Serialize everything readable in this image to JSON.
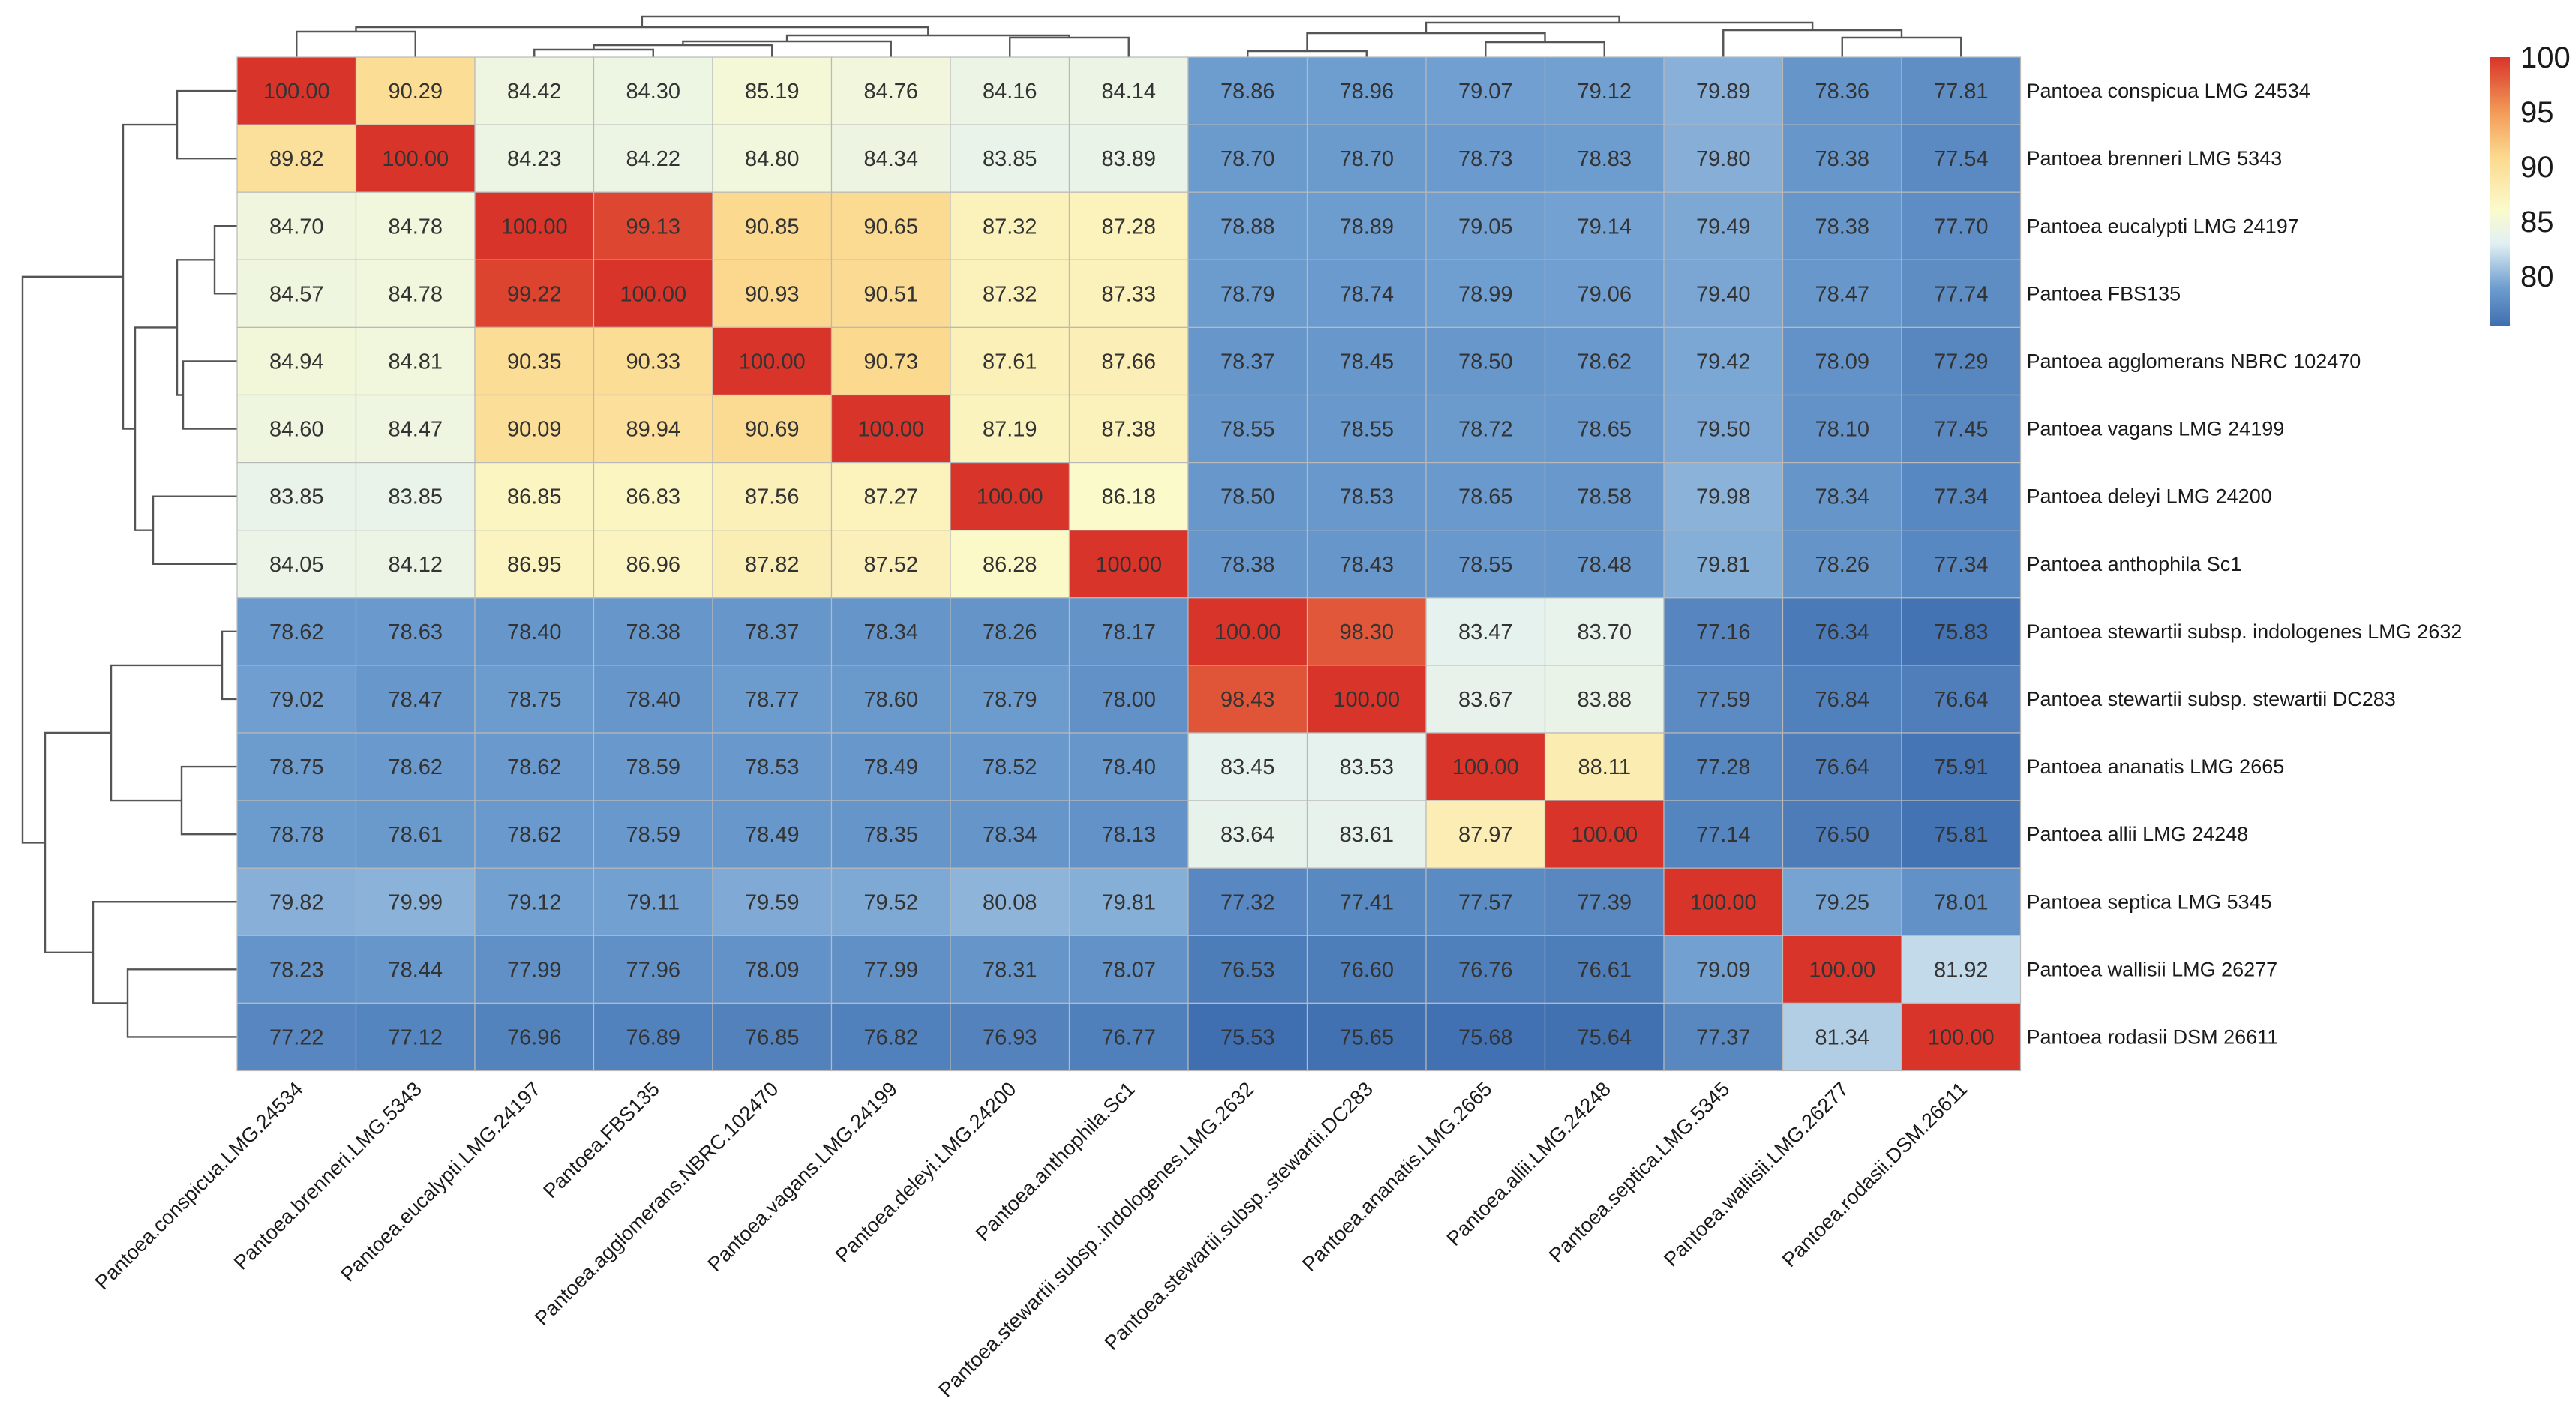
{
  "chart_data": {
    "type": "heatmap",
    "title": "",
    "row_labels": [
      "Pantoea conspicua LMG 24534",
      "Pantoea brenneri LMG 5343",
      "Pantoea eucalypti LMG 24197",
      "Pantoea FBS135",
      "Pantoea agglomerans NBRC 102470",
      "Pantoea vagans LMG 24199",
      "Pantoea deleyi LMG 24200",
      "Pantoea anthophila Sc1",
      "Pantoea stewartii subsp. indologenes LMG 2632",
      "Pantoea stewartii subsp. stewartii DC283",
      "Pantoea ananatis LMG 2665",
      "Pantoea allii LMG 24248",
      "Pantoea septica LMG 5345",
      "Pantoea wallisii LMG 26277",
      "Pantoea rodasii DSM 26611"
    ],
    "col_labels": [
      "Pantoea.conspicua.LMG.24534",
      "Pantoea.brenneri.LMG.5343",
      "Pantoea.eucalypti.LMG.24197",
      "Pantoea.FBS135",
      "Pantoea.agglomerans.NBRC.102470",
      "Pantoea.vagans.LMG.24199",
      "Pantoea.deleyi.LMG.24200",
      "Pantoea.anthophila.Sc1",
      "Pantoea.stewartii.subsp..indologenes.LMG.2632",
      "Pantoea.stewartii.subsp..stewartii.DC283",
      "Pantoea.ananatis.LMG.2665",
      "Pantoea.allii.LMG.24248",
      "Pantoea.septica.LMG.5345",
      "Pantoea.wallisii.LMG.26277",
      "Pantoea.rodasii.DSM.26611"
    ],
    "values": [
      [
        "100.00",
        "90.29",
        "84.42",
        "84.30",
        "85.19",
        "84.76",
        "84.16",
        "84.14",
        "78.86",
        "78.96",
        "79.07",
        "79.12",
        "79.89",
        "78.36",
        "77.81"
      ],
      [
        "89.82",
        "100.00",
        "84.23",
        "84.22",
        "84.80",
        "84.34",
        "83.85",
        "83.89",
        "78.70",
        "78.70",
        "78.73",
        "78.83",
        "79.80",
        "78.38",
        "77.54"
      ],
      [
        "84.70",
        "84.78",
        "100.00",
        "99.13",
        "90.85",
        "90.65",
        "87.32",
        "87.28",
        "78.88",
        "78.89",
        "79.05",
        "79.14",
        "79.49",
        "78.38",
        "77.70"
      ],
      [
        "84.57",
        "84.78",
        "99.22",
        "100.00",
        "90.93",
        "90.51",
        "87.32",
        "87.33",
        "78.79",
        "78.74",
        "78.99",
        "79.06",
        "79.40",
        "78.47",
        "77.74"
      ],
      [
        "84.94",
        "84.81",
        "90.35",
        "90.33",
        "100.00",
        "90.73",
        "87.61",
        "87.66",
        "78.37",
        "78.45",
        "78.50",
        "78.62",
        "79.42",
        "78.09",
        "77.29"
      ],
      [
        "84.60",
        "84.47",
        "90.09",
        "89.94",
        "90.69",
        "100.00",
        "87.19",
        "87.38",
        "78.55",
        "78.55",
        "78.72",
        "78.65",
        "79.50",
        "78.10",
        "77.45"
      ],
      [
        "83.85",
        "83.85",
        "86.85",
        "86.83",
        "87.56",
        "87.27",
        "100.00",
        "86.18",
        "78.50",
        "78.53",
        "78.65",
        "78.58",
        "79.98",
        "78.34",
        "77.34"
      ],
      [
        "84.05",
        "84.12",
        "86.95",
        "86.96",
        "87.82",
        "87.52",
        "86.28",
        "100.00",
        "78.38",
        "78.43",
        "78.55",
        "78.48",
        "79.81",
        "78.26",
        "77.34"
      ],
      [
        "78.62",
        "78.63",
        "78.40",
        "78.38",
        "78.37",
        "78.34",
        "78.26",
        "78.17",
        "100.00",
        "98.30",
        "83.47",
        "83.70",
        "77.16",
        "76.34",
        "75.83"
      ],
      [
        "79.02",
        "78.47",
        "78.75",
        "78.40",
        "78.77",
        "78.60",
        "78.79",
        "78.00",
        "98.43",
        "100.00",
        "83.67",
        "83.88",
        "77.59",
        "76.84",
        "76.64"
      ],
      [
        "78.75",
        "78.62",
        "78.62",
        "78.59",
        "78.53",
        "78.49",
        "78.52",
        "78.40",
        "83.45",
        "83.53",
        "100.00",
        "88.11",
        "77.28",
        "76.64",
        "75.91"
      ],
      [
        "78.78",
        "78.61",
        "78.62",
        "78.59",
        "78.49",
        "78.35",
        "78.34",
        "78.13",
        "83.64",
        "83.61",
        "87.97",
        "100.00",
        "77.14",
        "76.50",
        "75.81"
      ],
      [
        "79.82",
        "79.99",
        "79.12",
        "79.11",
        "79.59",
        "79.52",
        "80.08",
        "79.81",
        "77.32",
        "77.41",
        "77.57",
        "77.39",
        "100.00",
        "79.25",
        "78.01"
      ],
      [
        "78.23",
        "78.44",
        "77.99",
        "77.96",
        "78.09",
        "77.99",
        "78.31",
        "78.07",
        "76.53",
        "76.60",
        "76.76",
        "76.61",
        "79.09",
        "100.00",
        "81.92"
      ],
      [
        "77.22",
        "77.12",
        "76.96",
        "76.89",
        "76.85",
        "76.82",
        "76.93",
        "76.77",
        "75.53",
        "75.65",
        "75.68",
        "75.64",
        "77.37",
        "81.34",
        "100.00"
      ]
    ],
    "color_scale": {
      "min": 75.5,
      "max": 100,
      "stops": [
        {
          "value": 75.5,
          "color": "#3f6fb0"
        },
        {
          "value": 79,
          "color": "#6f9ed0"
        },
        {
          "value": 83,
          "color": "#e2f0f4"
        },
        {
          "value": 86,
          "color": "#fbfbcc"
        },
        {
          "value": 91,
          "color": "#fbd88d"
        },
        {
          "value": 95,
          "color": "#f39a58"
        },
        {
          "value": 100,
          "color": "#d83429"
        }
      ]
    },
    "legend": {
      "placement": "top-right",
      "ticks": [
        "100",
        "95",
        "90",
        "85",
        "80"
      ]
    },
    "row_dendrogram": {
      "groups": [
        "conspicua-brenneri",
        "eucalypti-FBS135-agglomerans-vagans-deleyi-anthophila",
        "stewartii-ananatis-allii",
        "septica-wallisii-rodasii"
      ]
    },
    "col_dendrogram": {
      "groups": [
        "conspicua-brenneri",
        "eucalypti-FBS135-agglomerans-vagans-deleyi-anthophila",
        "stewartii-ananatis-allii",
        "septica-wallisii-rodasii"
      ]
    }
  }
}
